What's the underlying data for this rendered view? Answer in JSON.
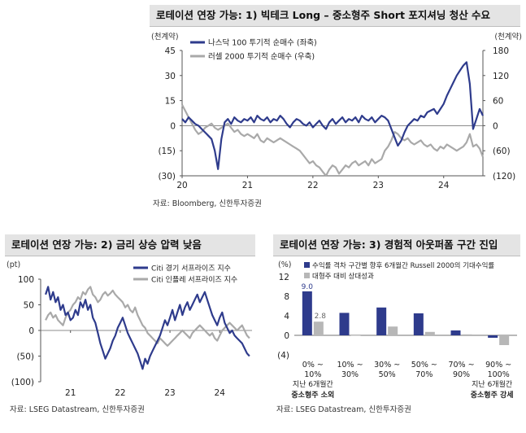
{
  "panels": [
    {
      "title": "로테이션 연장 가능: 1) 빅테크 Long – 중소형주 Short 포지셔닝 청산 수요",
      "source": "자료: Bloomberg, 신한투자증권"
    },
    {
      "title": "로테이션 연장 가능: 2) 금리 상승 압력 낮음",
      "source": "자료: LSEG Datastream, 신한투자증권"
    },
    {
      "title": "로테이션 연장 가능: 3) 경험적 아웃퍼폼 구간 진입",
      "source": "자료: LSEG Datastream, 신한투자증권"
    }
  ],
  "chart_data": [
    {
      "type": "line",
      "y_unit_left": "(천계약)",
      "y_unit_right": "(천계약)",
      "x_ticks": [
        "20",
        "21",
        "22",
        "23",
        "24"
      ],
      "x_range": [
        2020.0,
        2024.6
      ],
      "y_left_ticks": [
        "45",
        "30",
        "15",
        "0",
        "(15)",
        "(30)"
      ],
      "y_left_range": [
        -30,
        45
      ],
      "y_right_ticks": [
        "180",
        "120",
        "60",
        "0",
        "(60)",
        "(120)"
      ],
      "y_right_range": [
        -120,
        180
      ],
      "colors": {
        "nasdaq": "#2e3b8c",
        "russell": "#a9a9a9"
      },
      "series": [
        {
          "name": "나스닥 100 투기적 순매수 (좌축)",
          "axis": "left",
          "x": [
            2020.0,
            2020.05,
            2020.1,
            2020.15,
            2020.2,
            2020.25,
            2020.3,
            2020.35,
            2020.4,
            2020.45,
            2020.5,
            2020.55,
            2020.6,
            2020.65,
            2020.7,
            2020.75,
            2020.8,
            2020.85,
            2020.9,
            2020.95,
            2021.0,
            2021.05,
            2021.1,
            2021.15,
            2021.2,
            2021.25,
            2021.3,
            2021.35,
            2021.4,
            2021.45,
            2021.5,
            2021.55,
            2021.6,
            2021.65,
            2021.7,
            2021.75,
            2021.8,
            2021.85,
            2021.9,
            2021.95,
            2022.0,
            2022.05,
            2022.1,
            2022.15,
            2022.2,
            2022.25,
            2022.3,
            2022.35,
            2022.4,
            2022.45,
            2022.5,
            2022.55,
            2022.6,
            2022.65,
            2022.7,
            2022.75,
            2022.8,
            2022.85,
            2022.9,
            2022.95,
            2023.0,
            2023.05,
            2023.1,
            2023.15,
            2023.2,
            2023.25,
            2023.3,
            2023.35,
            2023.4,
            2023.45,
            2023.5,
            2023.55,
            2023.6,
            2023.65,
            2023.7,
            2023.75,
            2023.8,
            2023.85,
            2023.9,
            2023.95,
            2024.0,
            2024.05,
            2024.1,
            2024.15,
            2024.2,
            2024.25,
            2024.3,
            2024.35,
            2024.4,
            2024.45,
            2024.5,
            2024.55,
            2024.6
          ],
          "values": [
            4,
            2,
            5,
            3,
            1,
            0,
            -2,
            -4,
            -6,
            -8,
            -15,
            -26,
            -8,
            2,
            4,
            1,
            5,
            3,
            2,
            4,
            3,
            5,
            2,
            6,
            4,
            3,
            5,
            2,
            4,
            3,
            6,
            4,
            1,
            -1,
            2,
            4,
            3,
            1,
            0,
            2,
            -1,
            1,
            3,
            0,
            -2,
            2,
            4,
            1,
            3,
            5,
            2,
            4,
            3,
            5,
            2,
            6,
            4,
            3,
            5,
            2,
            4,
            6,
            5,
            3,
            -2,
            -7,
            -12,
            -9,
            -4,
            0,
            2,
            4,
            3,
            6,
            5,
            8,
            9,
            10,
            7,
            10,
            13,
            18,
            22,
            26,
            30,
            33,
            36,
            38,
            25,
            -2,
            4,
            10,
            6
          ]
        },
        {
          "name": "러셀 2000 투기적 순매수 (우축)",
          "axis": "right",
          "x": [
            2020.0,
            2020.05,
            2020.1,
            2020.15,
            2020.2,
            2020.25,
            2020.3,
            2020.35,
            2020.4,
            2020.45,
            2020.5,
            2020.55,
            2020.6,
            2020.65,
            2020.7,
            2020.75,
            2020.8,
            2020.85,
            2020.9,
            2020.95,
            2021.0,
            2021.05,
            2021.1,
            2021.15,
            2021.2,
            2021.25,
            2021.3,
            2021.35,
            2021.4,
            2021.45,
            2021.5,
            2021.55,
            2021.6,
            2021.65,
            2021.7,
            2021.75,
            2021.8,
            2021.85,
            2021.9,
            2021.95,
            2022.0,
            2022.05,
            2022.1,
            2022.15,
            2022.2,
            2022.25,
            2022.3,
            2022.35,
            2022.4,
            2022.45,
            2022.5,
            2022.55,
            2022.6,
            2022.65,
            2022.7,
            2022.75,
            2022.8,
            2022.85,
            2022.9,
            2022.95,
            2023.0,
            2023.05,
            2023.1,
            2023.15,
            2023.2,
            2023.25,
            2023.3,
            2023.35,
            2023.4,
            2023.45,
            2023.5,
            2023.55,
            2023.6,
            2023.65,
            2023.7,
            2023.75,
            2023.8,
            2023.85,
            2023.9,
            2023.95,
            2024.0,
            2024.05,
            2024.1,
            2024.15,
            2024.2,
            2024.25,
            2024.3,
            2024.35,
            2024.4,
            2024.45,
            2024.5,
            2024.55,
            2024.6
          ],
          "values": [
            50,
            35,
            20,
            5,
            -10,
            -20,
            -15,
            -5,
            0,
            5,
            -5,
            -10,
            -5,
            0,
            5,
            -5,
            -15,
            -10,
            -20,
            -25,
            -20,
            -25,
            -30,
            -20,
            -35,
            -40,
            -30,
            -35,
            -40,
            -35,
            -30,
            -35,
            -40,
            -45,
            -50,
            -55,
            -60,
            -70,
            -80,
            -90,
            -85,
            -95,
            -100,
            -110,
            -120,
            -105,
            -95,
            -100,
            -115,
            -105,
            -95,
            -100,
            -90,
            -85,
            -95,
            -90,
            -85,
            -95,
            -80,
            -90,
            -85,
            -80,
            -60,
            -50,
            -35,
            -15,
            -20,
            -30,
            -35,
            -30,
            -40,
            -45,
            -40,
            -35,
            -45,
            -50,
            -45,
            -55,
            -60,
            -50,
            -55,
            -45,
            -50,
            -55,
            -60,
            -55,
            -50,
            -40,
            -20,
            -50,
            -45,
            -55,
            -75
          ]
        }
      ]
    },
    {
      "type": "line",
      "y_unit": "(pt)",
      "x_ticks": [
        "21",
        "22",
        "23",
        "24"
      ],
      "x_range": [
        2020.4,
        2024.65
      ],
      "y_ticks": [
        "100",
        "50",
        "0",
        "(50)",
        "(100)"
      ],
      "y_range": [
        -100,
        100
      ],
      "colors": {
        "econ": "#2e3b8c",
        "infl": "#a9a9a9"
      },
      "series": [
        {
          "name": "Citi 경기 서프라이즈 지수",
          "x": [
            2020.5,
            2020.55,
            2020.6,
            2020.65,
            2020.7,
            2020.75,
            2020.8,
            2020.85,
            2020.9,
            2020.95,
            2021.0,
            2021.05,
            2021.1,
            2021.15,
            2021.2,
            2021.25,
            2021.3,
            2021.35,
            2021.4,
            2021.45,
            2021.5,
            2021.55,
            2021.6,
            2021.65,
            2021.7,
            2021.75,
            2021.8,
            2021.85,
            2021.9,
            2021.95,
            2022.0,
            2022.05,
            2022.1,
            2022.15,
            2022.2,
            2022.25,
            2022.3,
            2022.35,
            2022.4,
            2022.45,
            2022.5,
            2022.55,
            2022.6,
            2022.65,
            2022.7,
            2022.75,
            2022.8,
            2022.85,
            2022.9,
            2022.95,
            2023.0,
            2023.05,
            2023.1,
            2023.15,
            2023.2,
            2023.25,
            2023.3,
            2023.35,
            2023.4,
            2023.45,
            2023.5,
            2023.55,
            2023.6,
            2023.65,
            2023.7,
            2023.75,
            2023.8,
            2023.85,
            2023.9,
            2023.95,
            2024.0,
            2024.05,
            2024.1,
            2024.15,
            2024.2,
            2024.25,
            2024.3,
            2024.35,
            2024.4,
            2024.45,
            2024.5,
            2024.55,
            2024.6
          ],
          "values": [
            70,
            85,
            60,
            75,
            55,
            65,
            40,
            50,
            30,
            35,
            20,
            25,
            40,
            30,
            55,
            45,
            60,
            40,
            50,
            25,
            15,
            -5,
            -25,
            -40,
            -55,
            -45,
            -35,
            -20,
            -10,
            5,
            15,
            25,
            10,
            -5,
            -15,
            -25,
            -35,
            -45,
            -60,
            -75,
            -55,
            -65,
            -50,
            -40,
            -30,
            -20,
            -10,
            5,
            20,
            10,
            25,
            40,
            20,
            35,
            50,
            30,
            45,
            55,
            40,
            50,
            60,
            70,
            55,
            65,
            75,
            60,
            45,
            30,
            20,
            10,
            25,
            35,
            15,
            5,
            -5,
            0,
            -10,
            -15,
            -20,
            -25,
            -35,
            -45,
            -50
          ]
        },
        {
          "name": "Citi 인플레 서프라이즈 지수",
          "x": [
            2020.5,
            2020.55,
            2020.6,
            2020.65,
            2020.7,
            2020.75,
            2020.8,
            2020.85,
            2020.9,
            2020.95,
            2021.0,
            2021.05,
            2021.1,
            2021.15,
            2021.2,
            2021.25,
            2021.3,
            2021.35,
            2021.4,
            2021.45,
            2021.5,
            2021.55,
            2021.6,
            2021.65,
            2021.7,
            2021.75,
            2021.8,
            2021.85,
            2021.9,
            2021.95,
            2022.0,
            2022.05,
            2022.1,
            2022.15,
            2022.2,
            2022.25,
            2022.3,
            2022.35,
            2022.4,
            2022.45,
            2022.5,
            2022.55,
            2022.6,
            2022.65,
            2022.7,
            2022.75,
            2022.8,
            2022.85,
            2022.9,
            2022.95,
            2023.0,
            2023.05,
            2023.1,
            2023.15,
            2023.2,
            2023.25,
            2023.3,
            2023.35,
            2023.4,
            2023.45,
            2023.5,
            2023.55,
            2023.6,
            2023.65,
            2023.7,
            2023.75,
            2023.8,
            2023.85,
            2023.9,
            2023.95,
            2024.0,
            2024.05,
            2024.1,
            2024.15,
            2024.2,
            2024.25,
            2024.3,
            2024.35,
            2024.4,
            2024.45,
            2024.5,
            2024.55,
            2024.6
          ],
          "values": [
            20,
            30,
            35,
            25,
            30,
            20,
            15,
            10,
            25,
            35,
            40,
            50,
            55,
            65,
            60,
            75,
            70,
            80,
            85,
            70,
            65,
            55,
            60,
            70,
            75,
            68,
            72,
            78,
            70,
            65,
            60,
            55,
            45,
            50,
            40,
            35,
            45,
            30,
            20,
            10,
            5,
            -5,
            -10,
            -15,
            -20,
            -25,
            -15,
            -20,
            -25,
            -30,
            -25,
            -20,
            -15,
            -10,
            -5,
            0,
            -5,
            -10,
            -15,
            -5,
            0,
            5,
            10,
            5,
            0,
            -5,
            -10,
            -5,
            -15,
            -20,
            -10,
            0,
            5,
            10,
            15,
            10,
            5,
            0,
            5,
            10,
            0,
            -10,
            -15
          ]
        }
      ]
    },
    {
      "type": "bar",
      "y_unit": "(%)",
      "y_ticks": [
        "12",
        "8",
        "4",
        "0",
        "(4)"
      ],
      "y_range": [
        -4,
        12
      ],
      "categories": [
        "0% ~ 10%",
        "10% ~ 30%",
        "30% ~ 50%",
        "50% ~ 70%",
        "70% ~ 90%",
        "90% ~ 100%"
      ],
      "colors": {
        "bar1": "#2e3b8c",
        "bar2": "#b7b7b7"
      },
      "series": [
        {
          "name": "수익률 격차 구간별 향후 6개월간 Russell 2000의 기대수익률",
          "values": [
            9.0,
            4.6,
            5.7,
            4.5,
            1.0,
            -0.5
          ]
        },
        {
          "name": "대형주 대비 상대성과",
          "values": [
            2.8,
            0.0,
            1.8,
            0.7,
            0.2,
            -2.0
          ]
        }
      ],
      "data_labels": {
        "s0_0": "9.0",
        "s1_0": "2.8"
      },
      "group_left": [
        "지난 6개월간",
        "중소형주 소외"
      ],
      "group_right": [
        "지난 6개월간",
        "중소형주 강세"
      ]
    }
  ]
}
